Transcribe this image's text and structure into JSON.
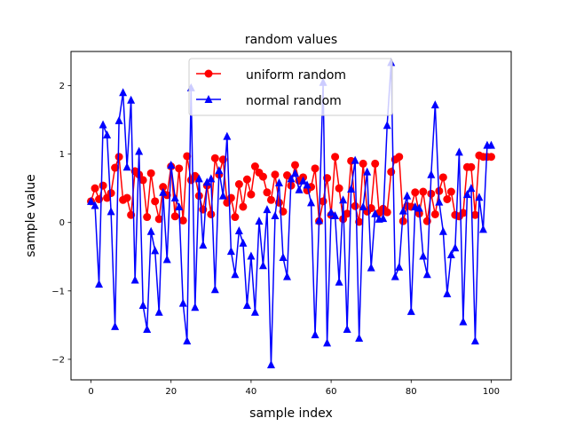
{
  "chart_data": {
    "type": "line",
    "title": "random values",
    "xlabel": "sample index",
    "ylabel": "sample value",
    "xlim": [
      -5,
      105
    ],
    "ylim": [
      -2.3,
      2.5
    ],
    "xticks": [
      0,
      20,
      40,
      60,
      80,
      100
    ],
    "yticks": [
      -2,
      -1,
      0,
      1,
      2
    ],
    "grid": false,
    "legend_position": "top-center",
    "x": [
      0,
      1,
      2,
      3,
      4,
      5,
      6,
      7,
      8,
      9,
      10,
      11,
      12,
      13,
      14,
      15,
      16,
      17,
      18,
      19,
      20,
      21,
      22,
      23,
      24,
      25,
      26,
      27,
      28,
      29,
      30,
      31,
      32,
      33,
      34,
      35,
      36,
      37,
      38,
      39,
      40,
      41,
      42,
      43,
      44,
      45,
      46,
      47,
      48,
      49,
      50,
      51,
      52,
      53,
      54,
      55,
      56,
      57,
      58,
      59,
      60,
      61,
      62,
      63,
      64,
      65,
      66,
      67,
      68,
      69,
      70,
      71,
      72,
      73,
      74,
      75,
      76,
      77,
      78,
      79,
      80,
      81,
      82,
      83,
      84,
      85,
      86,
      87,
      88,
      89,
      90,
      91,
      92,
      93,
      94,
      95,
      96,
      97,
      98,
      99,
      100
    ],
    "series": [
      {
        "name": "uniform random",
        "color": "#ff0000",
        "marker": "circle",
        "values": [
          0.31,
          0.5,
          0.34,
          0.54,
          0.36,
          0.43,
          0.8,
          0.96,
          0.33,
          0.36,
          0.11,
          0.75,
          0.7,
          0.62,
          0.08,
          0.72,
          0.31,
          0.05,
          0.52,
          0.4,
          0.82,
          0.09,
          0.79,
          0.03,
          0.97,
          0.62,
          0.68,
          0.39,
          0.19,
          0.54,
          0.12,
          0.94,
          0.7,
          0.92,
          0.29,
          0.36,
          0.08,
          0.56,
          0.23,
          0.63,
          0.41,
          0.82,
          0.73,
          0.67,
          0.44,
          0.33,
          0.7,
          0.29,
          0.16,
          0.69,
          0.54,
          0.84,
          0.61,
          0.66,
          0.47,
          0.52,
          0.79,
          0.02,
          0.31,
          0.65,
          0.11,
          0.96,
          0.5,
          0.05,
          0.13,
          0.9,
          0.24,
          0.01,
          0.86,
          0.16,
          0.21,
          0.86,
          0.14,
          0.2,
          0.15,
          0.74,
          0.92,
          0.96,
          0.02,
          0.24,
          0.23,
          0.44,
          0.13,
          0.45,
          0.02,
          0.42,
          0.12,
          0.46,
          0.66,
          0.34,
          0.45,
          0.11,
          0.09,
          0.14,
          0.81,
          0.81,
          0.11,
          0.98,
          0.96,
          0.96,
          0.96
        ]
      },
      {
        "name": "normal random",
        "color": "#0000ff",
        "marker": "triangle",
        "values": [
          0.31,
          0.25,
          -0.9,
          1.43,
          1.28,
          0.16,
          -1.52,
          1.49,
          1.9,
          0.81,
          1.79,
          -0.84,
          1.04,
          -1.21,
          -1.56,
          -0.13,
          -0.41,
          -1.31,
          0.44,
          -0.54,
          0.84,
          0.36,
          0.23,
          -1.18,
          -1.73,
          1.97,
          -1.24,
          0.64,
          -0.33,
          0.59,
          0.64,
          -0.98,
          0.76,
          0.39,
          1.26,
          -0.42,
          -0.76,
          -0.12,
          -0.3,
          -1.21,
          -0.49,
          -1.31,
          0.02,
          -0.63,
          0.19,
          -2.08,
          0.1,
          0.58,
          -0.51,
          -0.79,
          0.64,
          0.72,
          0.48,
          0.61,
          0.55,
          0.29,
          -1.64,
          0.03,
          2.05,
          -1.76,
          0.15,
          0.1,
          -0.87,
          0.33,
          -1.56,
          0.49,
          0.91,
          -1.69,
          0.23,
          0.74,
          -0.66,
          0.13,
          0.05,
          0.06,
          1.42,
          2.34,
          -0.79,
          -0.65,
          0.17,
          0.39,
          -1.3,
          0.23,
          0.21,
          -0.49,
          -0.76,
          0.7,
          1.72,
          0.3,
          -0.13,
          -1.04,
          -0.47,
          -0.37,
          1.03,
          -1.45,
          0.41,
          0.5,
          -1.73,
          0.37,
          -0.1,
          1.13,
          1.13
        ]
      }
    ]
  }
}
